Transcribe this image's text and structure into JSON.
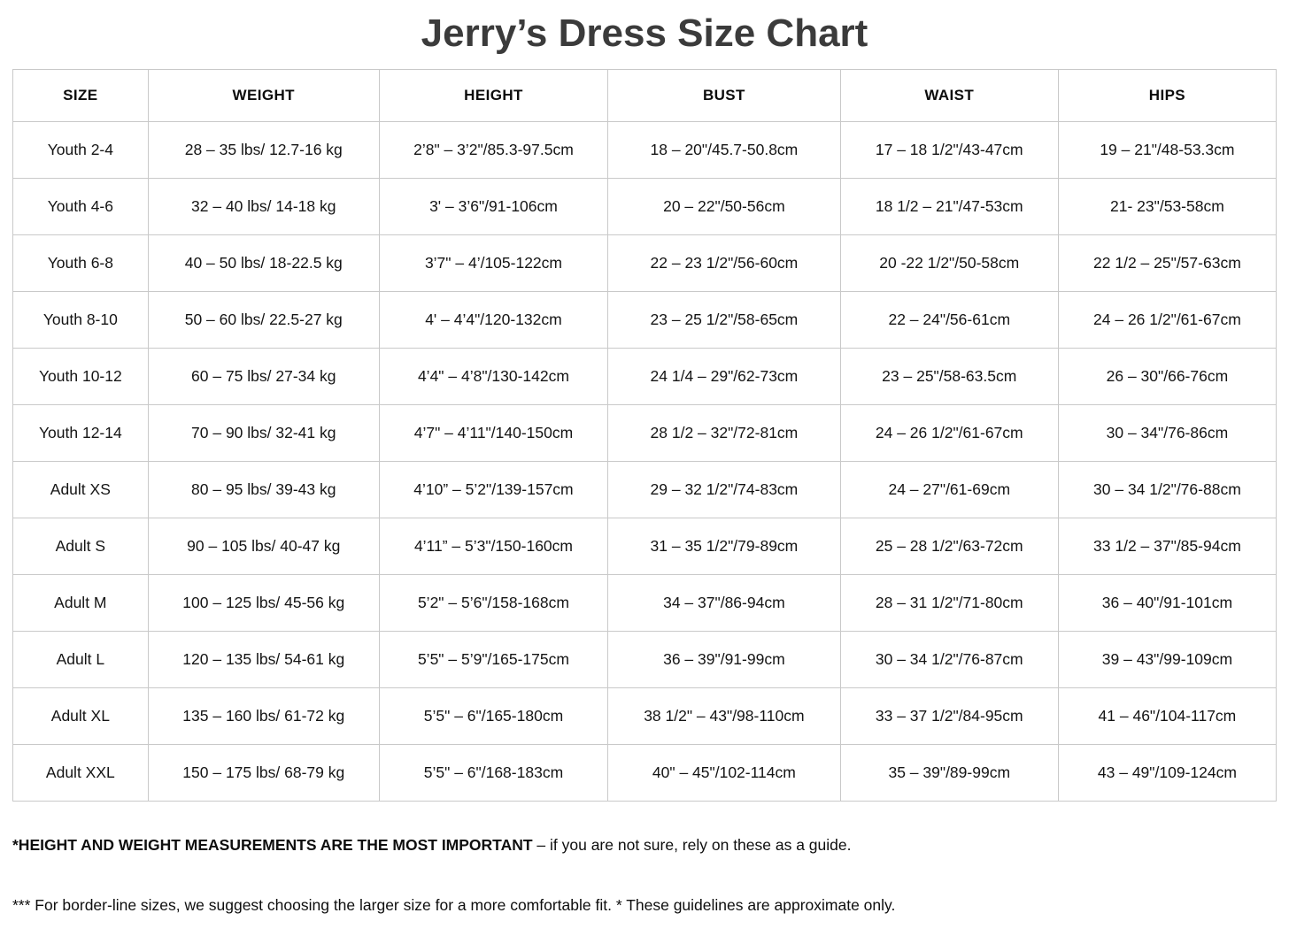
{
  "title": "Jerry’s Dress Size Chart",
  "table": {
    "headers": [
      "SIZE",
      "WEIGHT",
      "HEIGHT",
      "BUST",
      "WAIST",
      "HIPS"
    ],
    "rows": [
      [
        "Youth 2-4",
        "28 – 35 lbs/ 12.7-16 kg",
        "2’8\" – 3’2\"/85.3-97.5cm",
        "18 – 20\"/45.7-50.8cm",
        "17 – 18 1/2\"/43-47cm",
        "19 – 21\"/48-53.3cm"
      ],
      [
        "Youth 4-6",
        "32 – 40 lbs/ 14-18 kg",
        "3' – 3’6\"/91-106cm",
        "20 – 22\"/50-56cm",
        "18 1/2 – 21\"/47-53cm",
        "21- 23\"/53-58cm"
      ],
      [
        "Youth 6-8",
        "40 – 50 lbs/ 18-22.5 kg",
        "3’7\" – 4’/105-122cm",
        "22 – 23 1/2\"/56-60cm",
        "20 -22 1/2\"/50-58cm",
        "22 1/2 – 25\"/57-63cm"
      ],
      [
        "Youth 8-10",
        "50 – 60 lbs/ 22.5-27 kg",
        "4' – 4’4\"/120-132cm",
        "23 – 25 1/2\"/58-65cm",
        "22 – 24\"/56-61cm",
        "24 – 26 1/2\"/61-67cm"
      ],
      [
        "Youth 10-12",
        "60 – 75 lbs/ 27-34 kg",
        "4’4\" – 4’8\"/130-142cm",
        "24 1/4 – 29\"/62-73cm",
        "23 – 25\"/58-63.5cm",
        "26 – 30\"/66-76cm"
      ],
      [
        "Youth 12-14",
        "70 – 90 lbs/ 32-41 kg",
        "4’7\" – 4’11\"/140-150cm",
        "28 1/2 – 32\"/72-81cm",
        "24 – 26 1/2\"/61-67cm",
        "30 – 34\"/76-86cm"
      ],
      [
        "Adult XS",
        "80 – 95 lbs/ 39-43 kg",
        "4’10” – 5’2\"/139-157cm",
        "29 – 32 1/2\"/74-83cm",
        "24 – 27\"/61-69cm",
        "30 – 34 1/2\"/76-88cm"
      ],
      [
        "Adult S",
        "90 – 105 lbs/ 40-47 kg",
        "4’11” – 5’3\"/150-160cm",
        "31 – 35 1/2\"/79-89cm",
        "25 – 28 1/2\"/63-72cm",
        "33 1/2 – 37\"/85-94cm"
      ],
      [
        "Adult M",
        "100 – 125 lbs/ 45-56 kg",
        "5’2\" – 5’6\"/158-168cm",
        "34 – 37\"/86-94cm",
        "28 – 31 1/2\"/71-80cm",
        "36 – 40\"/91-101cm"
      ],
      [
        "Adult L",
        "120 – 135 lbs/ 54-61 kg",
        "5’5\" – 5’9\"/165-175cm",
        "36 – 39\"/91-99cm",
        "30 – 34 1/2\"/76-87cm",
        "39 – 43\"/99-109cm"
      ],
      [
        "Adult XL",
        "135 – 160 lbs/ 61-72 kg",
        "5’5\" – 6\"/165-180cm",
        "38 1/2\" – 43\"/98-110cm",
        "33 – 37 1/2\"/84-95cm",
        "41 – 46\"/104-117cm"
      ],
      [
        "Adult XXL",
        "150 – 175 lbs/ 68-79 kg",
        "5’5\" – 6\"/168-183cm",
        "40\" – 45\"/102-114cm",
        "35 – 39\"/89-99cm",
        "43 – 49\"/109-124cm"
      ]
    ]
  },
  "notes": {
    "note1_bold": "*HEIGHT AND WEIGHT MEASUREMENTS ARE THE MOST IMPORTANT",
    "note1_rest": " – if you are not sure, rely on these as a guide.",
    "note2": "*** For border-line sizes, we suggest choosing the larger size for a more comfortable fit. * These guidelines are approximate only."
  },
  "colors": {
    "title": "#3b3b3b",
    "text": "#141414",
    "border": "#c9c9c9",
    "background": "#ffffff"
  }
}
